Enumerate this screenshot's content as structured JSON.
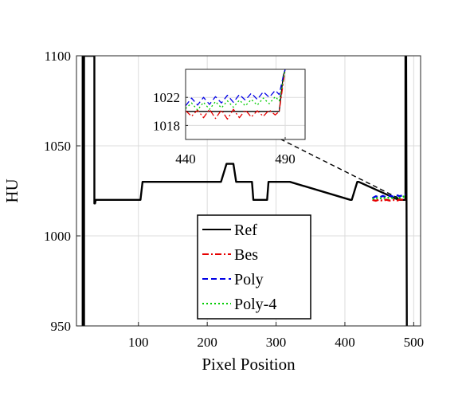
{
  "chart_data": [
    {
      "type": "line",
      "title": "",
      "xlabel": "Pixel Position",
      "ylabel": "HU",
      "xlim": [
        10,
        510
      ],
      "ylim": [
        950,
        1100
      ],
      "xticks": [
        100,
        200,
        300,
        400,
        500
      ],
      "yticks": [
        950,
        1000,
        1050,
        1100
      ],
      "grid": true,
      "legend_position": "bottom-center",
      "series": [
        {
          "name": "Ref",
          "color": "#000000",
          "style": "solid",
          "x": [
            19,
            19.01,
            20,
            21,
            21.01,
            36,
            36.01,
            37,
            38,
            38.01,
            103,
            106,
            210,
            220,
            228,
            238,
            242,
            265,
            267,
            287,
            289,
            320,
            408,
            410,
            418,
            420,
            478,
            480,
            488,
            488.01,
            489,
            490,
            490.01
          ],
          "y": [
            1100,
            950,
            950,
            950,
            1100,
            1100,
            1018,
            1018,
            1020,
            1020,
            1020,
            1030,
            1030,
            1030,
            1040,
            1040,
            1030,
            1030,
            1020,
            1020,
            1030,
            1030,
            1020,
            1020,
            1030,
            1030,
            1020,
            1020,
            1020,
            1100,
            1100,
            950,
            950
          ]
        },
        {
          "name": "Bes",
          "color": "#e60000",
          "style": "dash-dot",
          "x": [
            440,
            445,
            450,
            455,
            460,
            465,
            470,
            475,
            480,
            485,
            488
          ],
          "y": [
            1020,
            1019.5,
            1020.2,
            1019.4,
            1020.1,
            1019.6,
            1020,
            1019.5,
            1020.2,
            1020,
            1020
          ]
        },
        {
          "name": "Poly",
          "color": "#0000e6",
          "style": "dashed",
          "x": [
            440,
            445,
            450,
            455,
            460,
            465,
            470,
            475,
            480,
            485,
            488
          ],
          "y": [
            1021,
            1022,
            1021.3,
            1022.2,
            1021.5,
            1022.4,
            1021.8,
            1022.6,
            1022,
            1022.8,
            1023
          ]
        },
        {
          "name": "Poly-4",
          "color": "#00cc00",
          "style": "dotted",
          "x": [
            440,
            445,
            450,
            455,
            460,
            465,
            470,
            475,
            480,
            485,
            488
          ],
          "y": [
            1020.5,
            1021.2,
            1020.6,
            1021.3,
            1020.8,
            1021.4,
            1020.9,
            1021.6,
            1021.1,
            1021.8,
            1022
          ]
        }
      ]
    },
    {
      "type": "line",
      "title": "",
      "inset": true,
      "xlim": [
        440,
        500
      ],
      "ylim": [
        1016,
        1026
      ],
      "xticks": [
        440,
        490
      ],
      "yticks": [
        1018,
        1022
      ],
      "grid": true,
      "series": [
        {
          "name": "Ref",
          "color": "#000000",
          "style": "solid",
          "x": [
            440,
            450,
            460,
            470,
            480,
            487,
            489,
            490
          ],
          "y": [
            1020,
            1020,
            1020,
            1020,
            1020,
            1020,
            1025,
            1026
          ]
        },
        {
          "name": "Bes",
          "color": "#e60000",
          "style": "dash-dot",
          "x": [
            440,
            443,
            446,
            449,
            452,
            455,
            458,
            461,
            464,
            467,
            470,
            473,
            476,
            479,
            482,
            485,
            487,
            489,
            490
          ],
          "y": [
            1020.1,
            1019.3,
            1020.2,
            1019.1,
            1020.3,
            1019.0,
            1020.2,
            1018.9,
            1020.3,
            1019.1,
            1020.2,
            1019.2,
            1020.1,
            1019.3,
            1020.2,
            1019.5,
            1020,
            1024,
            1026
          ]
        },
        {
          "name": "Poly",
          "color": "#0000e6",
          "style": "dashed",
          "x": [
            440,
            443,
            446,
            449,
            452,
            455,
            458,
            461,
            464,
            467,
            470,
            473,
            476,
            479,
            482,
            485,
            487,
            489,
            490
          ],
          "y": [
            1020.8,
            1021.9,
            1020.9,
            1022.0,
            1021.0,
            1022.1,
            1021.2,
            1022.3,
            1021.3,
            1022.4,
            1021.6,
            1022.6,
            1021.7,
            1022.8,
            1022.0,
            1023.0,
            1022.4,
            1025,
            1026
          ]
        },
        {
          "name": "Poly-4",
          "color": "#00cc00",
          "style": "dotted",
          "x": [
            440,
            443,
            446,
            449,
            452,
            455,
            458,
            461,
            464,
            467,
            470,
            473,
            476,
            479,
            482,
            485,
            487,
            489,
            490
          ],
          "y": [
            1020.4,
            1021.2,
            1020.2,
            1021.3,
            1020.3,
            1021.4,
            1020.5,
            1021.5,
            1020.6,
            1021.6,
            1020.8,
            1021.7,
            1020.9,
            1021.9,
            1021.1,
            1022.1,
            1021.5,
            1024.5,
            1026
          ]
        }
      ]
    }
  ]
}
